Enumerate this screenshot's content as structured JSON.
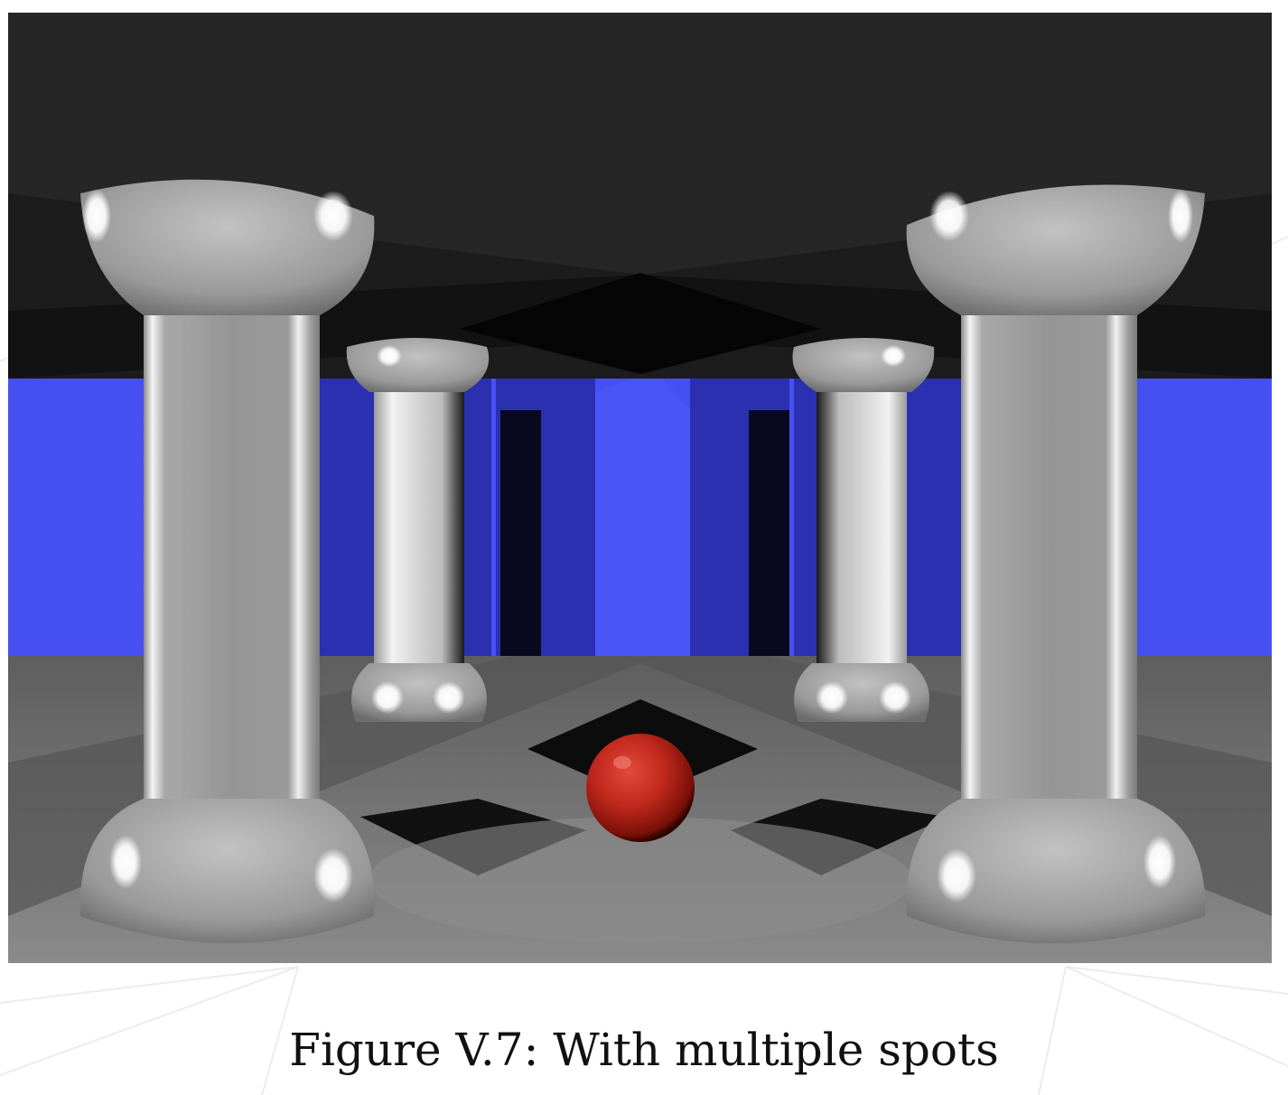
{
  "figure": {
    "caption": "Figure V.7: With multiple spots",
    "colors": {
      "ceiling": "#262626",
      "wall": "#4650f0",
      "floor": "#7a7a7a",
      "pillar": "#9a9a9a",
      "sphere": "#c0281c"
    }
  }
}
